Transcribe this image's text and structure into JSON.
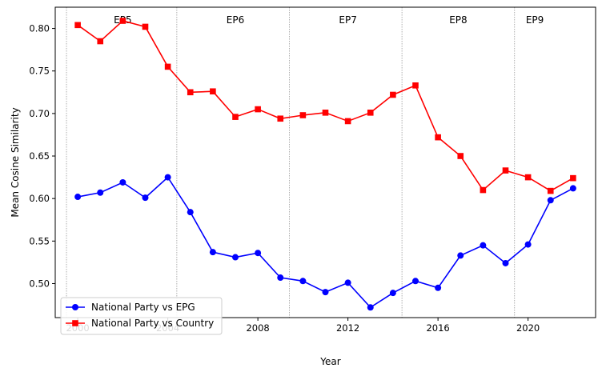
{
  "chart_data": {
    "type": "line",
    "xlabel": "Year",
    "ylabel": "Mean Cosine Similarity",
    "xlim": [
      1999,
      2023
    ],
    "ylim": [
      0.46,
      0.825
    ],
    "xticks": [
      2000,
      2004,
      2008,
      2012,
      2016,
      2020
    ],
    "yticks": [
      0.5,
      0.55,
      0.6,
      0.65,
      0.7,
      0.75,
      0.8
    ],
    "grid": false,
    "legend_position": "lower-left",
    "period_boundaries": [
      1999.5,
      2004.4,
      2009.4,
      2014.4,
      2019.4
    ],
    "periods": [
      {
        "label": "EP5",
        "x": 2002
      },
      {
        "label": "EP6",
        "x": 2007
      },
      {
        "label": "EP7",
        "x": 2012
      },
      {
        "label": "EP8",
        "x": 2016.9
      },
      {
        "label": "EP9",
        "x": 2020.3
      }
    ],
    "x": [
      2000,
      2001,
      2002,
      2003,
      2004,
      2005,
      2006,
      2007,
      2008,
      2009,
      2010,
      2011,
      2012,
      2013,
      2014,
      2015,
      2016,
      2017,
      2018,
      2019,
      2020,
      2021,
      2022
    ],
    "series": [
      {
        "name": "National Party vs EPG",
        "color": "#0000ff",
        "marker": "circle",
        "values": [
          0.602,
          0.607,
          0.619,
          0.601,
          0.625,
          0.584,
          0.537,
          0.531,
          0.536,
          0.507,
          0.503,
          0.49,
          0.501,
          0.472,
          0.489,
          0.503,
          0.495,
          0.533,
          0.545,
          0.524,
          0.546,
          0.598,
          0.612
        ]
      },
      {
        "name": "National Party vs Country",
        "color": "#ff0000",
        "marker": "square",
        "values": [
          0.804,
          0.785,
          0.809,
          0.802,
          0.755,
          0.725,
          0.726,
          0.696,
          0.705,
          0.694,
          0.698,
          0.701,
          0.691,
          0.701,
          0.722,
          0.733,
          0.672,
          0.65,
          0.61,
          0.633,
          0.625,
          0.609,
          0.624
        ]
      }
    ]
  }
}
